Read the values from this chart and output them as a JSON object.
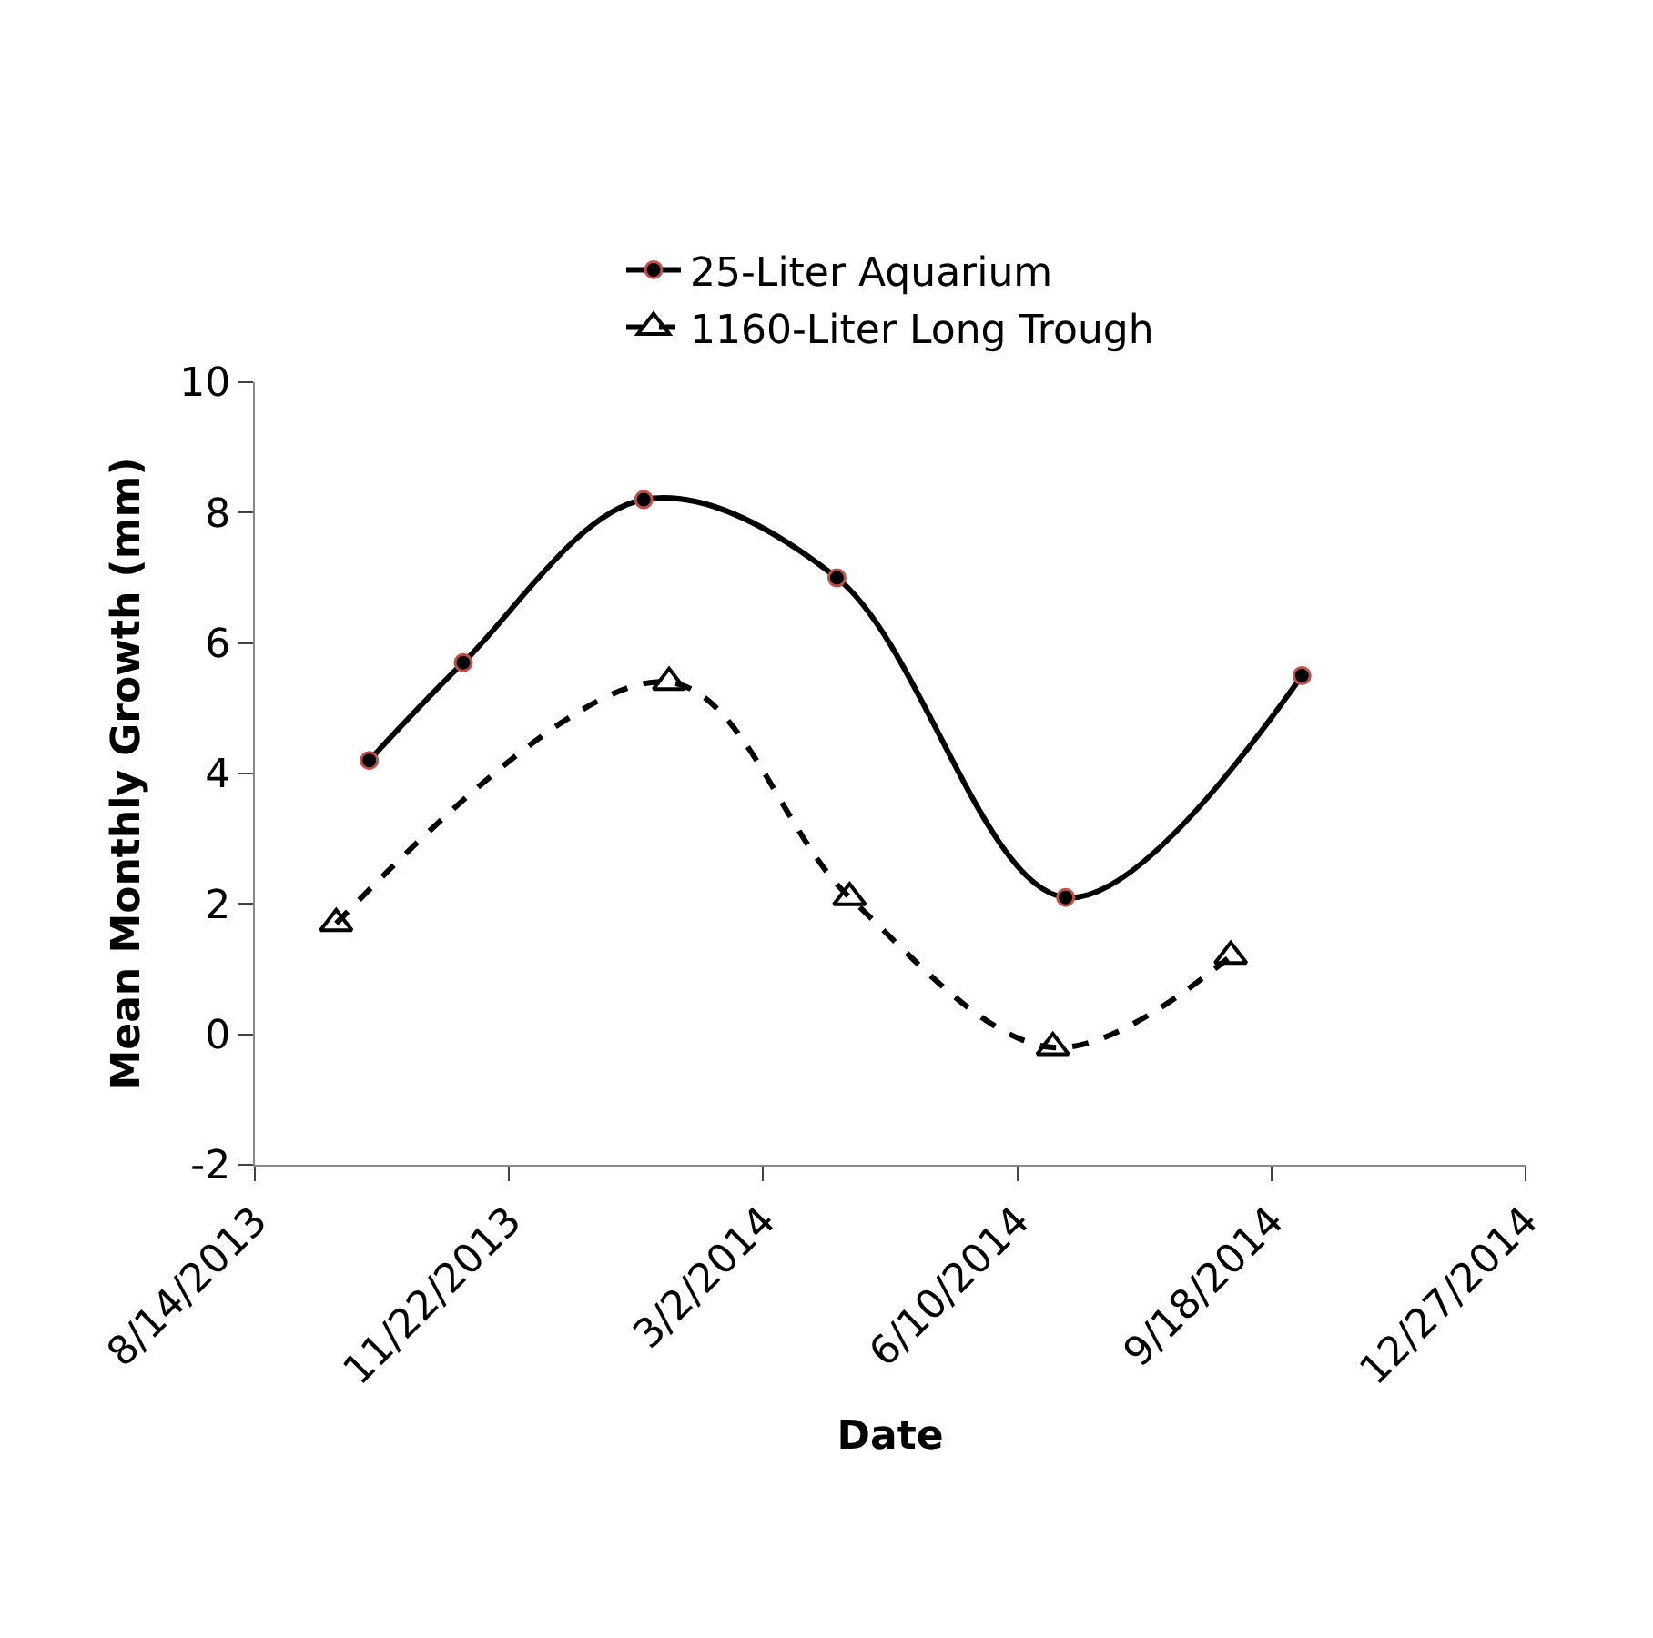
{
  "chart_data": {
    "type": "line",
    "xlabel": "Date",
    "ylabel": "Mean Monthly Growth (mm)",
    "xlim": [
      "2013-08-14",
      "2014-12-27"
    ],
    "xticks": [
      {
        "value": "2013-08-14",
        "label": "8/14/2013"
      },
      {
        "value": "2013-11-22",
        "label": "11/22/2013"
      },
      {
        "value": "2014-03-02",
        "label": "3/2/2014"
      },
      {
        "value": "2014-06-10",
        "label": "6/10/2014"
      },
      {
        "value": "2014-09-18",
        "label": "9/18/2014"
      },
      {
        "value": "2014-12-27",
        "label": "12/27/2014"
      }
    ],
    "ylim": [
      -2,
      10
    ],
    "yticks": [
      -2,
      0,
      2,
      4,
      6,
      8,
      10
    ],
    "legend": "top",
    "series": [
      {
        "name": "25-Liter Aquarium",
        "color": "#000000",
        "marker": "circle",
        "line_style": "solid",
        "x": [
          "2013-09-28",
          "2013-11-04",
          "2014-01-14",
          "2014-03-31",
          "2014-06-29",
          "2014-09-30"
        ],
        "values": [
          4.2,
          5.7,
          8.2,
          7.0,
          2.1,
          5.5
        ]
      },
      {
        "name": "1160-Liter Long Trough",
        "color": "#000000",
        "marker": "triangle",
        "line_style": "dashed",
        "x": [
          "2013-09-15",
          "2014-01-24",
          "2014-04-05",
          "2014-06-24",
          "2014-09-02"
        ],
        "values": [
          1.7,
          5.4,
          2.1,
          -0.2,
          1.2
        ]
      }
    ]
  }
}
